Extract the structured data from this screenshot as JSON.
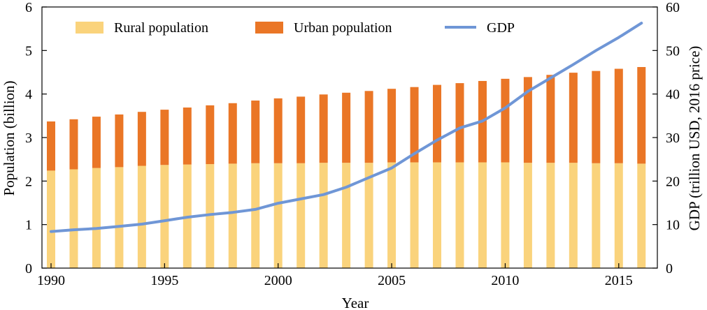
{
  "chart_data": {
    "type": "bar",
    "stacked": true,
    "xlabel": "Year",
    "ylabel": "Population (billion)",
    "y2label": "GDP (trillion USD, 2016 price)",
    "ylim": [
      0,
      6
    ],
    "y2lim": [
      0,
      60
    ],
    "yticks": [
      "0",
      "1",
      "2",
      "3",
      "4",
      "5",
      "6"
    ],
    "y2ticks": [
      "0",
      "10",
      "20",
      "30",
      "40",
      "50",
      "60"
    ],
    "xticks": [
      "1990",
      "1995",
      "2000",
      "2005",
      "2010",
      "2015"
    ],
    "x": [
      1990,
      1991,
      1992,
      1993,
      1994,
      1995,
      1996,
      1997,
      1998,
      1999,
      2000,
      2001,
      2002,
      2003,
      2004,
      2005,
      2006,
      2007,
      2008,
      2009,
      2010,
      2011,
      2012,
      2013,
      2014,
      2015,
      2016
    ],
    "legend_position": "top",
    "grid": false,
    "series": [
      {
        "name": "Rural population",
        "kind": "bar",
        "axis": "left",
        "color": "#fad37c",
        "values": [
          2.24,
          2.27,
          2.3,
          2.32,
          2.35,
          2.37,
          2.38,
          2.39,
          2.4,
          2.41,
          2.41,
          2.41,
          2.42,
          2.42,
          2.42,
          2.43,
          2.43,
          2.43,
          2.43,
          2.43,
          2.43,
          2.42,
          2.42,
          2.42,
          2.41,
          2.41,
          2.4
        ]
      },
      {
        "name": "Urban population",
        "kind": "bar",
        "axis": "left",
        "color": "#ea7626",
        "values": [
          1.13,
          1.15,
          1.18,
          1.21,
          1.24,
          1.27,
          1.31,
          1.35,
          1.39,
          1.44,
          1.49,
          1.53,
          1.57,
          1.61,
          1.65,
          1.69,
          1.73,
          1.78,
          1.82,
          1.87,
          1.92,
          1.97,
          2.02,
          2.07,
          2.12,
          2.17,
          2.22
        ]
      },
      {
        "name": "GDP",
        "kind": "line",
        "axis": "right",
        "color": "#6f96d6",
        "values": [
          8.4,
          8.8,
          9.1,
          9.6,
          10.1,
          10.9,
          11.7,
          12.3,
          12.8,
          13.5,
          14.9,
          15.9,
          16.9,
          18.6,
          20.8,
          23.0,
          26.3,
          29.4,
          32.2,
          33.8,
          36.8,
          40.6,
          43.7,
          46.8,
          50.0,
          53.0,
          56.3
        ]
      }
    ]
  }
}
